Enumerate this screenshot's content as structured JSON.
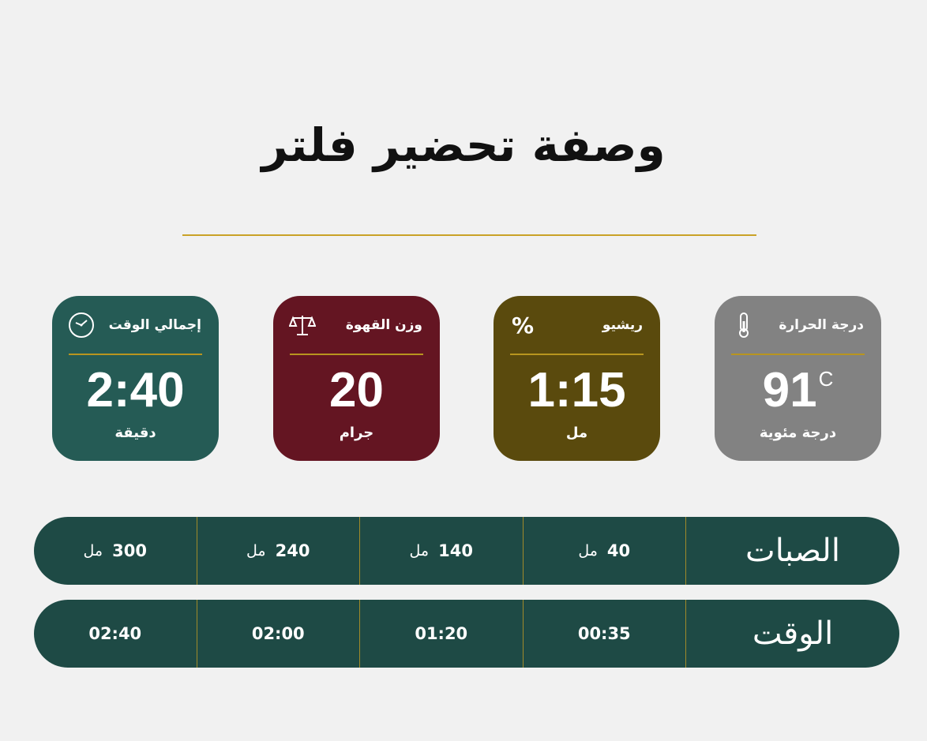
{
  "title": "وصفة تحضير فلتر",
  "colors": {
    "accent": "#c9a227",
    "time_card": "#255b55",
    "weight_card": "#641522",
    "ratio_card": "#5a4a0d",
    "temp_card": "#828282",
    "table": "#1e4a45"
  },
  "cards": [
    {
      "label": "درجة الحرارة",
      "icon": "thermometer-icon",
      "value": "91",
      "sup": "C",
      "unit": "درجة مئوية"
    },
    {
      "label": "ريشيو",
      "icon": "percent-icon",
      "icon_glyph": "%",
      "value": "1:15",
      "unit": "مل"
    },
    {
      "label": "وزن القهوة",
      "icon": "scale-icon",
      "value": "20",
      "unit": "جرام"
    },
    {
      "label": "إجمالي الوقت",
      "icon": "clock-icon",
      "value": "2:40",
      "unit": "دقيقة"
    }
  ],
  "table": {
    "pours": {
      "label": "الصبات",
      "unit": "مل",
      "values": [
        "40",
        "140",
        "240",
        "300"
      ]
    },
    "time": {
      "label": "الوقت",
      "values": [
        "00:35",
        "01:20",
        "02:00",
        "02:40"
      ]
    }
  }
}
